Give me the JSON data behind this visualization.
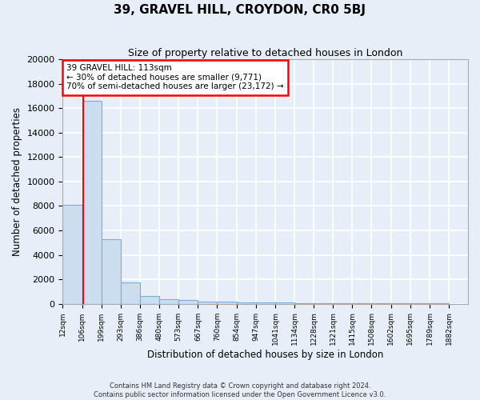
{
  "title": "39, GRAVEL HILL, CROYDON, CR0 5BJ",
  "subtitle": "Size of property relative to detached houses in London",
  "xlabel": "Distribution of detached houses by size in London",
  "ylabel": "Number of detached properties",
  "bar_edges": [
    12,
    106,
    199,
    293,
    386,
    480,
    573,
    667,
    760,
    854,
    947,
    1041,
    1134,
    1228,
    1321,
    1415,
    1508,
    1602,
    1695,
    1789,
    1882
  ],
  "bar_heights": [
    8100,
    16600,
    5300,
    1750,
    650,
    350,
    270,
    200,
    150,
    120,
    95,
    75,
    65,
    55,
    50,
    45,
    40,
    35,
    30,
    25
  ],
  "bar_color": "#ccddf0",
  "bar_edge_color": "#7aaed6",
  "red_line_x": 113,
  "annotation_title": "39 GRAVEL HILL: 113sqm",
  "annotation_line1": "← 30% of detached houses are smaller (9,771)",
  "annotation_line2": "70% of semi-detached houses are larger (23,172) →",
  "ylim": [
    0,
    20000
  ],
  "yticks": [
    0,
    2000,
    4000,
    6000,
    8000,
    10000,
    12000,
    14000,
    16000,
    18000,
    20000
  ],
  "background_color": "#e8eef8",
  "plot_bg_color": "#e8eef8",
  "grid_color": "#ffffff",
  "footer_line1": "Contains HM Land Registry data © Crown copyright and database right 2024.",
  "footer_line2": "Contains public sector information licensed under the Open Government Licence v3.0."
}
